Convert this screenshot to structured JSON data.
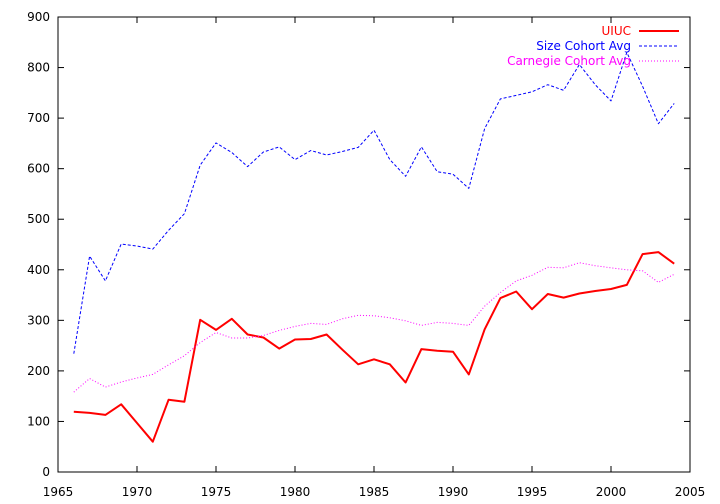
{
  "chart_data": {
    "type": "line",
    "title": "",
    "xlabel": "",
    "ylabel": "",
    "xlim": [
      1965,
      2005
    ],
    "ylim": [
      0,
      900
    ],
    "x_ticks": [
      1965,
      1970,
      1975,
      1980,
      1985,
      1990,
      1995,
      2000,
      2005
    ],
    "y_ticks": [
      0,
      100,
      200,
      300,
      400,
      500,
      600,
      700,
      800,
      900
    ],
    "x_tick_labels": [
      "1965",
      "1970",
      "1975",
      "1980",
      "1985",
      "1990",
      "1995",
      "2000",
      "2005"
    ],
    "y_tick_labels": [
      "0",
      "100",
      "200",
      "300",
      "400",
      "500",
      "600",
      "700",
      "800",
      "900"
    ],
    "grid": false,
    "legend_position": "top-right",
    "x": [
      1966,
      1967,
      1968,
      1969,
      1970,
      1971,
      1972,
      1973,
      1974,
      1975,
      1976,
      1977,
      1978,
      1979,
      1980,
      1981,
      1982,
      1983,
      1984,
      1985,
      1986,
      1987,
      1988,
      1989,
      1990,
      1991,
      1992,
      1993,
      1994,
      1995,
      1996,
      1997,
      1998,
      1999,
      2000,
      2001,
      2002,
      2003,
      2004
    ],
    "series": [
      {
        "name": "UIUC",
        "color": "#ff0000",
        "style": "solid",
        "values": [
          119,
          117,
          113,
          134,
          97,
          60,
          143,
          139,
          301,
          281,
          303,
          272,
          266,
          244,
          262,
          263,
          272,
          242,
          213,
          223,
          213,
          177,
          243,
          240,
          238,
          193,
          282,
          344,
          357,
          322,
          352,
          345,
          353,
          358,
          362,
          370,
          431,
          435,
          412
        ]
      },
      {
        "name": "Size Cohort Avg",
        "color": "#0000ff",
        "style": "dashed",
        "values": [
          234,
          427,
          378,
          451,
          447,
          441,
          478,
          511,
          607,
          651,
          632,
          604,
          633,
          643,
          618,
          636,
          627,
          634,
          642,
          676,
          618,
          585,
          643,
          594,
          589,
          561,
          679,
          738,
          745,
          752,
          766,
          755,
          806,
          766,
          734,
          830,
          763,
          689,
          729
        ]
      },
      {
        "name": "Carnegie Cohort Avg",
        "color": "#ff00ff",
        "style": "dotted",
        "values": [
          158,
          185,
          168,
          178,
          186,
          193,
          212,
          230,
          256,
          276,
          265,
          265,
          270,
          280,
          288,
          294,
          292,
          303,
          310,
          309,
          305,
          299,
          290,
          296,
          294,
          290,
          328,
          355,
          378,
          389,
          405,
          404,
          414,
          408,
          404,
          400,
          398,
          375,
          391
        ]
      }
    ]
  }
}
